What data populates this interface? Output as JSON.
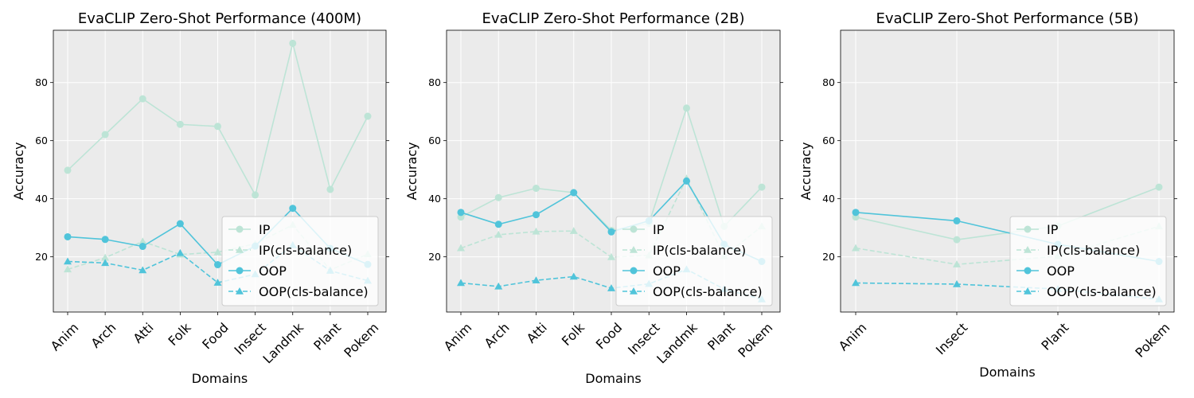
{
  "colors": {
    "ip": "#bde4d6",
    "oop": "#50c4da",
    "panel_bg": "#ebebeb",
    "grid": "#ffffff"
  },
  "chart_data": [
    {
      "type": "line",
      "title": "EvaCLIP Zero-Shot Performance (400M)",
      "xlabel": "Domains",
      "ylabel": "Accuracy",
      "categories": [
        "Anim",
        "Arch",
        "Atti",
        "Folk",
        "Food",
        "Insect",
        "Landmk",
        "Plant",
        "Pokem"
      ],
      "ylim": [
        1,
        98
      ],
      "yticks": [
        20,
        40,
        60,
        80
      ],
      "grid": true,
      "legend": "lower right",
      "series": [
        {
          "name": "IP",
          "style": "solid",
          "marker": "circle",
          "color": "ip",
          "values": [
            49.8,
            62.1,
            74.4,
            65.6,
            64.9,
            41.3,
            93.5,
            43.2,
            68.4
          ]
        },
        {
          "name": "IP(cls-balance)",
          "style": "dashed",
          "marker": "triangle",
          "color": "ip",
          "values": [
            15.7,
            19.7,
            25.3,
            20.8,
            21.6,
            24.5,
            31.0,
            15.5,
            20.9
          ]
        },
        {
          "name": "OOP",
          "style": "solid",
          "marker": "circle",
          "color": "oop",
          "values": [
            26.9,
            26.0,
            23.6,
            31.4,
            17.3,
            23.7,
            36.7,
            22.9,
            17.4
          ]
        },
        {
          "name": "OOP(cls-balance)",
          "style": "dashed",
          "marker": "triangle",
          "color": "oop",
          "values": [
            18.4,
            17.9,
            15.4,
            21.3,
            11.1,
            14.0,
            24.0,
            15.2,
            11.8
          ]
        }
      ]
    },
    {
      "type": "line",
      "title": "EvaCLIP Zero-Shot Performance (2B)",
      "xlabel": "Domains",
      "ylabel": "Accuracy",
      "categories": [
        "Anim",
        "Arch",
        "Atti",
        "Folk",
        "Food",
        "Insect",
        "Landmk",
        "Plant",
        "Pokem"
      ],
      "ylim": [
        1,
        98
      ],
      "yticks": [
        20,
        40,
        60,
        80
      ],
      "grid": true,
      "legend": "lower right",
      "series": [
        {
          "name": "IP",
          "style": "solid",
          "marker": "circle",
          "color": "ip",
          "values": [
            33.7,
            40.4,
            43.6,
            42.1,
            29.1,
            31.5,
            71.2,
            30.5,
            44.0
          ]
        },
        {
          "name": "IP(cls-balance)",
          "style": "dashed",
          "marker": "triangle",
          "color": "ip",
          "values": [
            23.0,
            27.6,
            28.7,
            28.9,
            19.9,
            20.5,
            47.0,
            20.2,
            30.5
          ]
        },
        {
          "name": "OOP",
          "style": "solid",
          "marker": "circle",
          "color": "oop",
          "values": [
            35.3,
            31.2,
            34.5,
            42.1,
            28.6,
            32.4,
            46.1,
            24.3,
            18.4
          ]
        },
        {
          "name": "OOP(cls-balance)",
          "style": "dashed",
          "marker": "triangle",
          "color": "oop",
          "values": [
            11.0,
            9.8,
            11.9,
            13.2,
            9.2,
            10.7,
            15.7,
            8.9,
            5.4
          ]
        }
      ]
    },
    {
      "type": "line",
      "title": "EvaCLIP Zero-Shot Performance (5B)",
      "xlabel": "Domains",
      "ylabel": "Accuracy",
      "categories": [
        "Anim",
        "Insect",
        "Plant",
        "Pokem"
      ],
      "ylim": [
        1,
        98
      ],
      "yticks": [
        20,
        40,
        60,
        80
      ],
      "grid": true,
      "legend": "lower right",
      "series": [
        {
          "name": "IP",
          "style": "solid",
          "marker": "circle",
          "color": "ip",
          "values": [
            33.7,
            25.9,
            30.6,
            44.0
          ]
        },
        {
          "name": "IP(cls-balance)",
          "style": "dashed",
          "marker": "triangle",
          "color": "ip",
          "values": [
            23.0,
            17.4,
            20.2,
            30.5
          ]
        },
        {
          "name": "OOP",
          "style": "solid",
          "marker": "circle",
          "color": "oop",
          "values": [
            35.3,
            32.4,
            24.3,
            18.4
          ]
        },
        {
          "name": "OOP(cls-balance)",
          "style": "dashed",
          "marker": "triangle",
          "color": "oop",
          "values": [
            11.0,
            10.6,
            8.9,
            5.4
          ]
        }
      ]
    }
  ]
}
